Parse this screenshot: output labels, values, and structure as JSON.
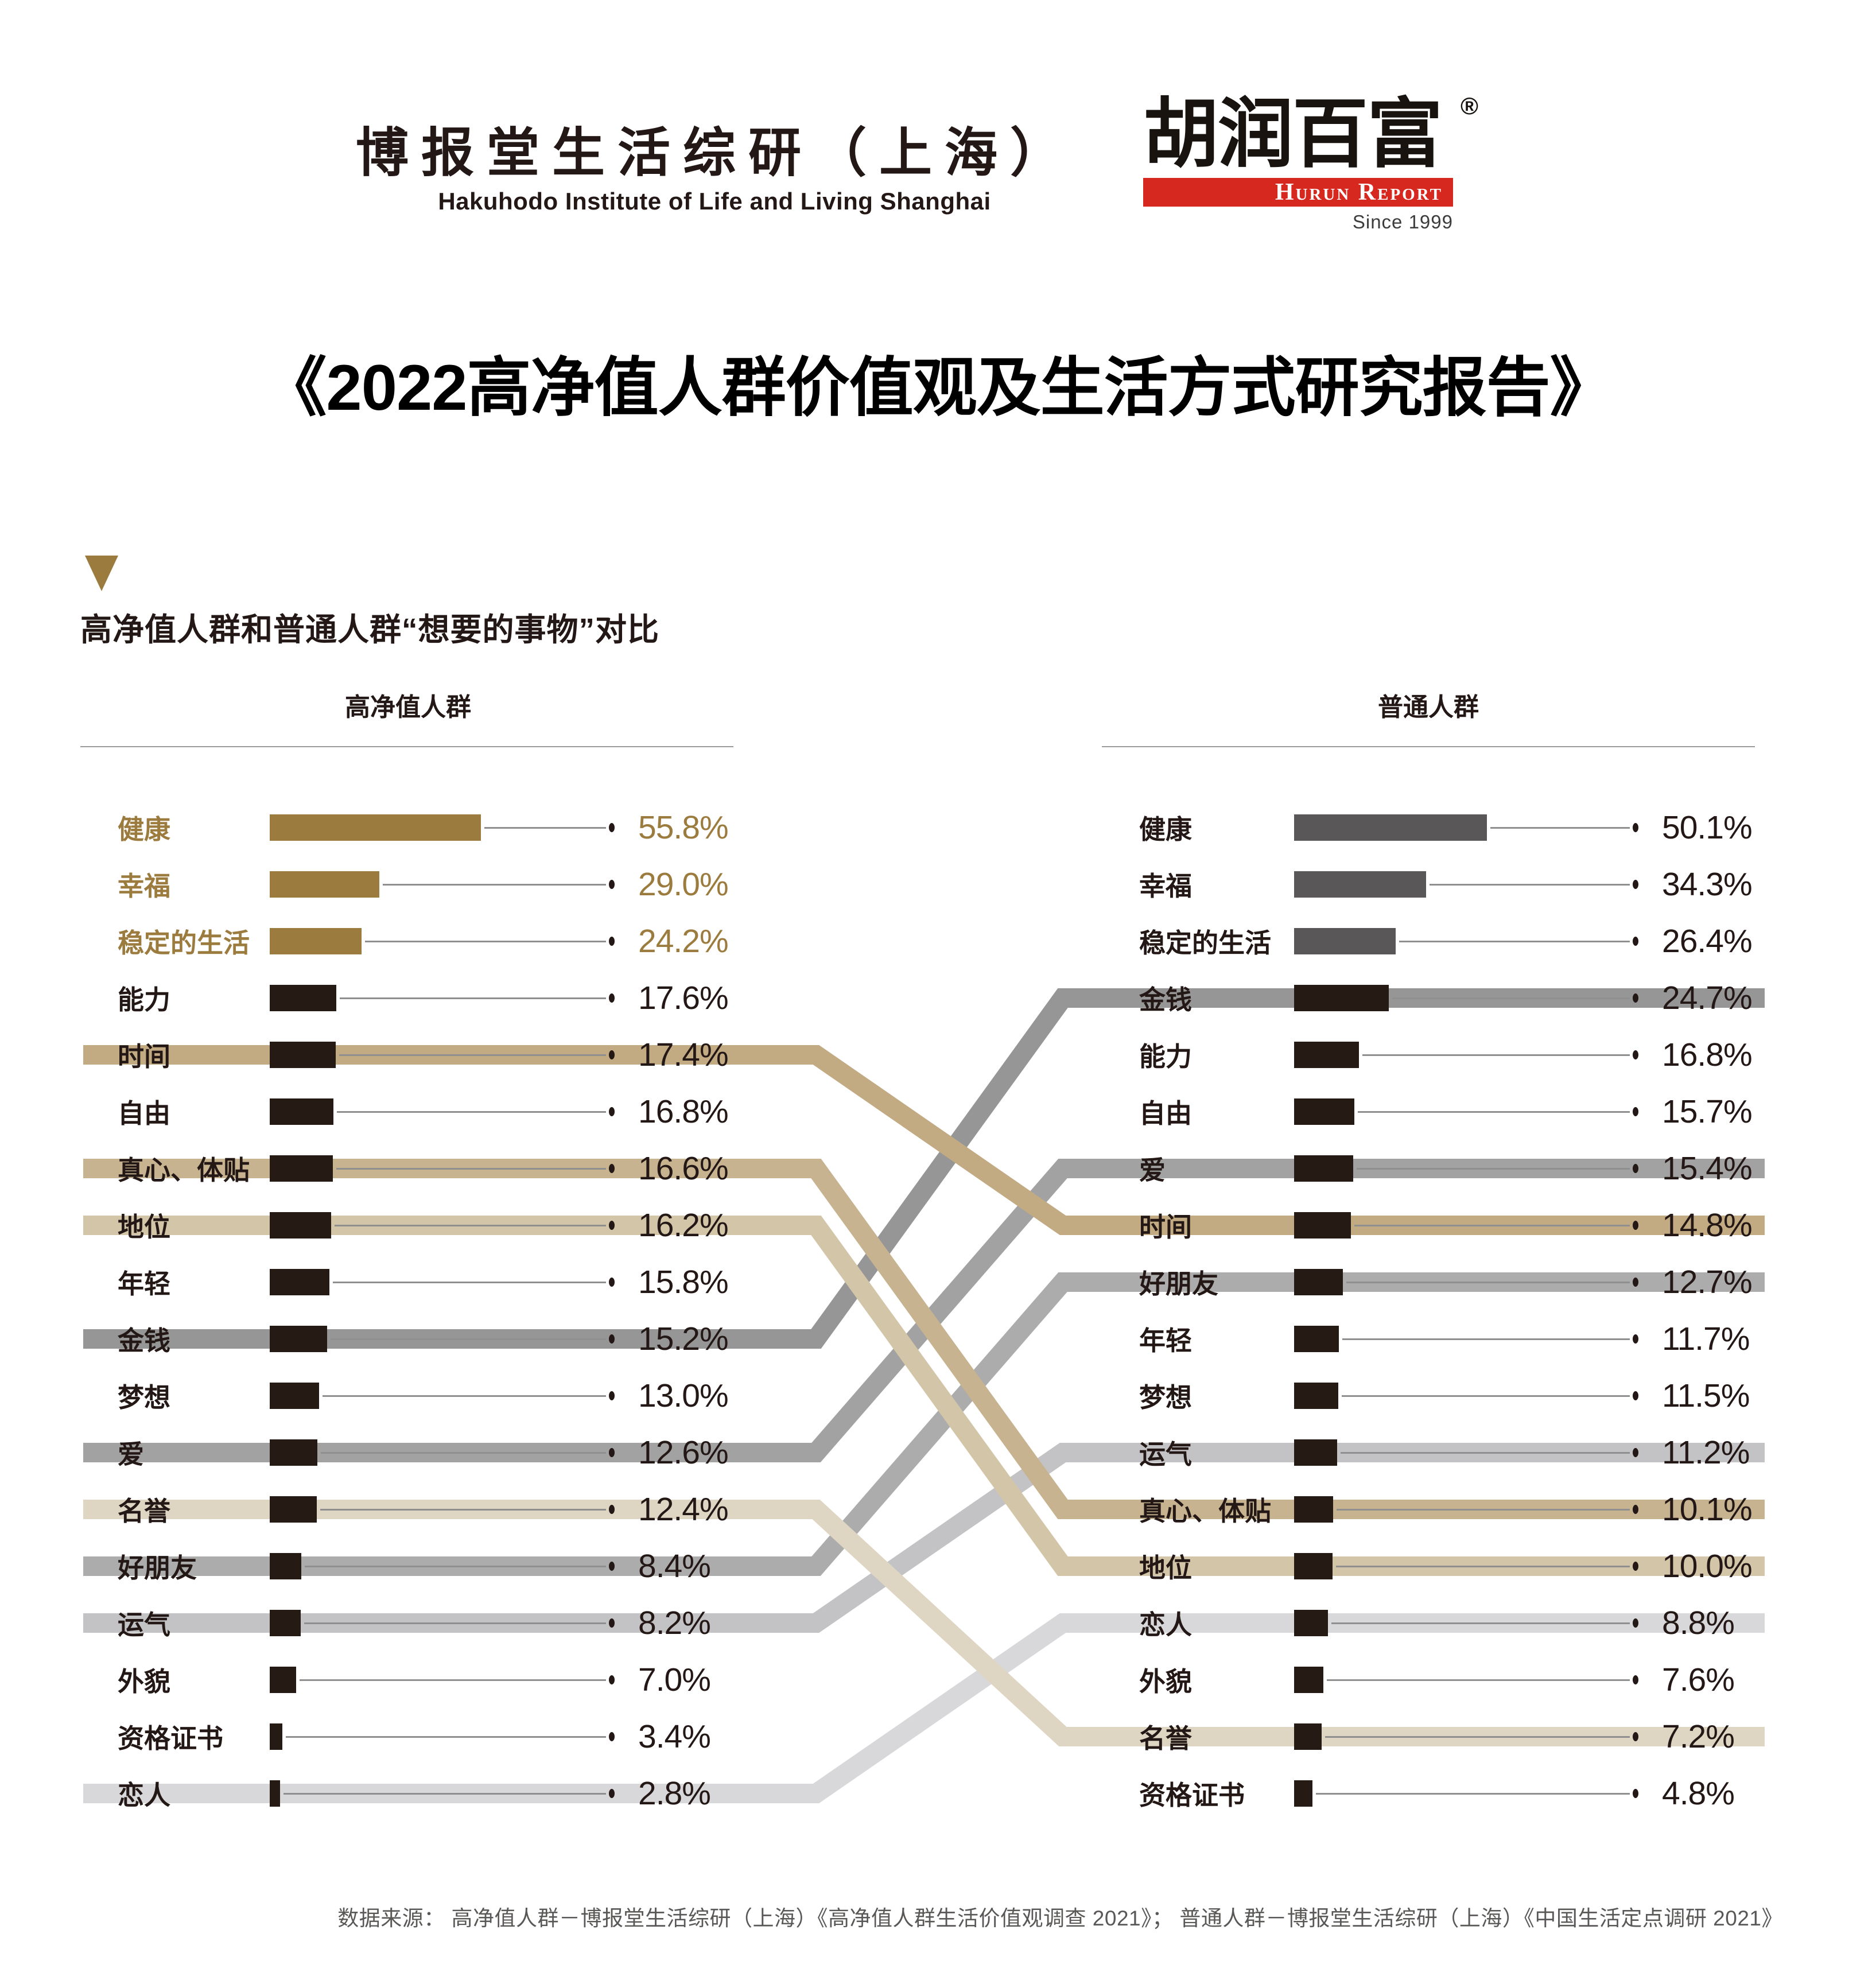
{
  "header": {
    "hakuhodo": {
      "cn": "博报堂生活综研（上海）",
      "en": "Hakuhodo Institute of Life and Living Shanghai"
    },
    "hurun": {
      "cn": "胡润百富",
      "registered_mark": "®",
      "banner": "Hurun Report",
      "since": "Since 1999"
    }
  },
  "title": "《2022高净值人群价值观及生活方式研究报告》",
  "section_title": "高净值人群和普通人群“想要的事物”对比",
  "colors": {
    "gold": "#9c7c3e",
    "bar_dark": "#261a14",
    "bar_gray": "#595757",
    "text_dark": "#231815",
    "connector_line": "#8f8f8f",
    "hurun_red": "#d6281f"
  },
  "chart_data": {
    "type": "bar",
    "title": "高净值人群和普通人群“想要的事物”对比",
    "value_suffix": "%",
    "left": {
      "header": "高净值人群",
      "items": [
        {
          "label": "健康",
          "value": 55.8,
          "tone": "gold"
        },
        {
          "label": "幸福",
          "value": 29.0,
          "tone": "gold"
        },
        {
          "label": "稳定的生活",
          "value": 24.2,
          "tone": "gold"
        },
        {
          "label": "能力",
          "value": 17.6,
          "tone": "dark"
        },
        {
          "label": "时间",
          "value": 17.4,
          "tone": "dark"
        },
        {
          "label": "自由",
          "value": 16.8,
          "tone": "dark"
        },
        {
          "label": "真心、体贴",
          "value": 16.6,
          "tone": "dark"
        },
        {
          "label": "地位",
          "value": 16.2,
          "tone": "dark"
        },
        {
          "label": "年轻",
          "value": 15.8,
          "tone": "dark"
        },
        {
          "label": "金钱",
          "value": 15.2,
          "tone": "dark"
        },
        {
          "label": "梦想",
          "value": 13.0,
          "tone": "dark"
        },
        {
          "label": "爱",
          "value": 12.6,
          "tone": "dark"
        },
        {
          "label": "名誉",
          "value": 12.4,
          "tone": "dark"
        },
        {
          "label": "好朋友",
          "value": 8.4,
          "tone": "dark"
        },
        {
          "label": "运气",
          "value": 8.2,
          "tone": "dark"
        },
        {
          "label": "外貌",
          "value": 7.0,
          "tone": "dark"
        },
        {
          "label": "资格证书",
          "value": 3.4,
          "tone": "dark"
        },
        {
          "label": "恋人",
          "value": 2.8,
          "tone": "dark"
        }
      ]
    },
    "right": {
      "header": "普通人群",
      "items": [
        {
          "label": "健康",
          "value": 50.1,
          "tone": "gray"
        },
        {
          "label": "幸福",
          "value": 34.3,
          "tone": "gray"
        },
        {
          "label": "稳定的生活",
          "value": 26.4,
          "tone": "gray"
        },
        {
          "label": "金钱",
          "value": 24.7,
          "tone": "dark"
        },
        {
          "label": "能力",
          "value": 16.8,
          "tone": "dark"
        },
        {
          "label": "自由",
          "value": 15.7,
          "tone": "dark"
        },
        {
          "label": "爱",
          "value": 15.4,
          "tone": "dark"
        },
        {
          "label": "时间",
          "value": 14.8,
          "tone": "dark"
        },
        {
          "label": "好朋友",
          "value": 12.7,
          "tone": "dark"
        },
        {
          "label": "年轻",
          "value": 11.7,
          "tone": "dark"
        },
        {
          "label": "梦想",
          "value": 11.5,
          "tone": "dark"
        },
        {
          "label": "运气",
          "value": 11.2,
          "tone": "dark"
        },
        {
          "label": "真心、体贴",
          "value": 10.1,
          "tone": "dark"
        },
        {
          "label": "地位",
          "value": 10.0,
          "tone": "dark"
        },
        {
          "label": "恋人",
          "value": 8.8,
          "tone": "dark"
        },
        {
          "label": "外貌",
          "value": 7.6,
          "tone": "dark"
        },
        {
          "label": "名誉",
          "value": 7.2,
          "tone": "dark"
        },
        {
          "label": "资格证书",
          "value": 4.8,
          "tone": "dark"
        }
      ]
    },
    "links": [
      {
        "label": "恋人",
        "left_index": 17,
        "right_index": 14,
        "color": "#d8d8da"
      },
      {
        "label": "运气",
        "left_index": 14,
        "right_index": 11,
        "color": "#c3c3c6"
      },
      {
        "label": "好朋友",
        "left_index": 13,
        "right_index": 8,
        "color": "#acacac"
      },
      {
        "label": "爱",
        "left_index": 11,
        "right_index": 6,
        "color": "#a2a2a2"
      },
      {
        "label": "金钱",
        "left_index": 9,
        "right_index": 3,
        "color": "#969696"
      },
      {
        "label": "名誉",
        "left_index": 12,
        "right_index": 16,
        "color": "#ded6c3"
      },
      {
        "label": "地位",
        "left_index": 7,
        "right_index": 13,
        "color": "#d3c5a8"
      },
      {
        "label": "真心、体贴",
        "left_index": 6,
        "right_index": 12,
        "color": "#c7b390"
      },
      {
        "label": "时间",
        "left_index": 4,
        "right_index": 7,
        "color": "#c2ab83"
      }
    ]
  },
  "footer": "数据来源： 高净值人群－博报堂生活综研（上海）《高净值人群生活价值观调查 2021》； 普通人群－博报堂生活综研（上海）《中国生活定点调研 2021》"
}
